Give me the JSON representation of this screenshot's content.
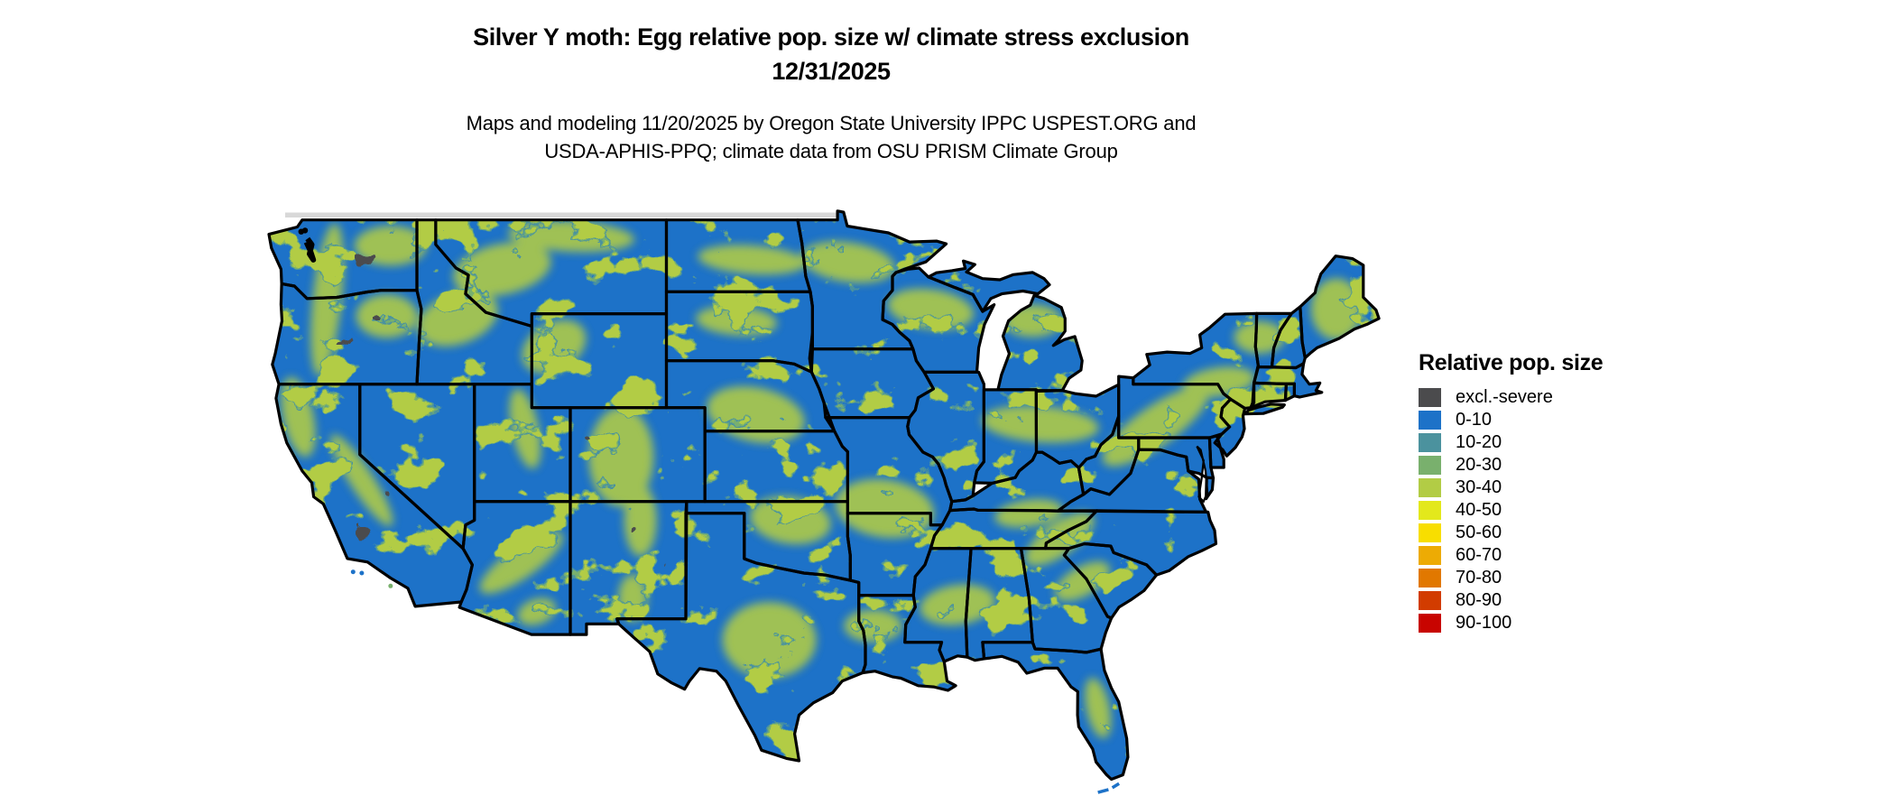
{
  "figure": {
    "title_line1": "Silver Y moth: Egg relative pop. size w/ climate stress exclusion",
    "title_line2": "12/31/2025",
    "subtitle_line1": "Maps and modeling 11/20/2025 by Oregon State University IPPC USPEST.ORG and",
    "subtitle_line2": "USDA-APHIS-PPQ; climate data from OSU PRISM Climate Group"
  },
  "map": {
    "region": "Continental United States",
    "kind": "raster-risk-map",
    "colors": {
      "land_base": "#1d72c8",
      "patch_teal": "#4b929e",
      "patch_green": "#79b06d",
      "patch_yellow_green": "#b2cc45",
      "excluded_gray": "#4b4b4d",
      "state_border": "#000000",
      "water": "#ffffff",
      "raster_edge_gray": "#d8d8d8"
    }
  },
  "legend": {
    "title": "Relative pop. size",
    "items": [
      {
        "label": "excl.-severe",
        "color": "#4b4b4d"
      },
      {
        "label": "0-10",
        "color": "#1d72c8"
      },
      {
        "label": "10-20",
        "color": "#4b929e"
      },
      {
        "label": "20-30",
        "color": "#79b06d"
      },
      {
        "label": "30-40",
        "color": "#b2cc45"
      },
      {
        "label": "40-50",
        "color": "#e3e81c"
      },
      {
        "label": "50-60",
        "color": "#f8de00"
      },
      {
        "label": "60-70",
        "color": "#edab04"
      },
      {
        "label": "70-80",
        "color": "#e17800"
      },
      {
        "label": "80-90",
        "color": "#d23c00"
      },
      {
        "label": "90-100",
        "color": "#c80400"
      }
    ]
  }
}
